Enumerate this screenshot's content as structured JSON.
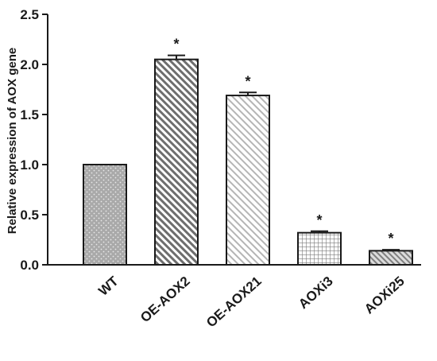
{
  "chart_data": {
    "type": "bar",
    "title": "",
    "xlabel": "",
    "ylabel": "Relative expression of AOX gene",
    "ylim": [
      0,
      2.5
    ],
    "yticks": [
      "0.0",
      "0.5",
      "1.0",
      "1.5",
      "2.0",
      "2.5"
    ],
    "categories": [
      "WT",
      "OE-AOX2",
      "OE-AOX21",
      "AOXi3",
      "AOXi25"
    ],
    "values": [
      1.0,
      2.05,
      1.69,
      0.32,
      0.14
    ],
    "errors": [
      0.0,
      0.04,
      0.03,
      0.015,
      0.01
    ],
    "significance": [
      "",
      "*",
      "*",
      "*",
      "*"
    ],
    "patterns": [
      "dots",
      "dense-diagonal",
      "light-diagonal",
      "grid",
      "thin-diagonal"
    ],
    "colors": {
      "bar_fill": "#bdbdbd",
      "bar_stroke": "#1a1a1a",
      "axis": "#1a1a1a"
    },
    "grid": false,
    "legend": "none"
  }
}
